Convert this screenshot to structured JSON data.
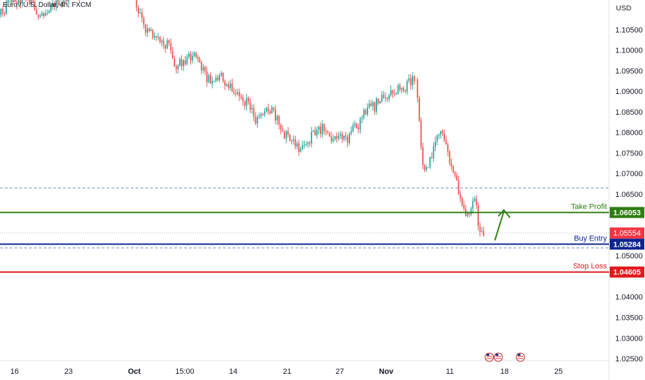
{
  "chart_data": {
    "type": "candlestick",
    "symbol_title": "Euro / U.S. Dollar, 4h, FXCM",
    "currency": "USD",
    "y_axis": {
      "range": [
        1.0245,
        1.1122
      ],
      "ticks": [
        "1.10500",
        "1.10000",
        "1.09500",
        "1.09000",
        "1.08500",
        "1.08000",
        "1.07500",
        "1.07000",
        "1.06500",
        "1.05000",
        "1.04000",
        "1.03500",
        "1.03000",
        "1.02500"
      ]
    },
    "x_axis": {
      "ticks": [
        "16",
        "23",
        "Oct",
        "15:00",
        "14",
        "21",
        "27",
        "Nov",
        "11",
        "18",
        "25"
      ]
    },
    "price_path": [
      [
        1.1085,
        1.11,
        1.1125,
        1.1118,
        1.1135,
        1.111,
        1.109,
        1.11,
        1.1115,
        1.112,
        1.113,
        1.114,
        1.114
      ],
      [
        1.113,
        1.109,
        1.106,
        1.105,
        1.103,
        1.1025,
        1.101,
        1.102,
        1.101,
        1.095,
        1.0965,
        1.0975,
        1.0985,
        1.099,
        1.0975,
        1.095,
        1.0935,
        1.092,
        1.093,
        1.094,
        1.092,
        1.091,
        1.09,
        1.0895,
        1.088,
        1.087,
        1.0855,
        1.082,
        1.0835,
        1.085,
        1.0855,
        1.0845,
        1.0815,
        1.08,
        1.079,
        1.0785,
        1.077,
        1.076,
        1.077,
        1.079,
        1.08,
        1.081,
        1.0805,
        1.079,
        1.078,
        1.078,
        1.079,
        1.0775,
        1.08,
        1.081,
        1.082,
        1.085,
        1.087,
        1.086,
        1.0875,
        1.089,
        1.088,
        1.0895,
        1.0905,
        1.09,
        1.091,
        1.092,
        1.0928
      ],
      [
        1.0928,
        1.086,
        1.076,
        1.07,
        1.072,
        1.074,
        1.075,
        1.077,
        1.0805,
        1.081,
        1.079,
        1.076,
        1.072,
        1.07,
        1.069,
        1.066,
        1.0635,
        1.0615,
        1.06,
        1.0605,
        1.062,
        1.064,
        1.058,
        1.0565,
        1.0555
      ]
    ],
    "levels": [
      {
        "label": "Take Profit",
        "value": 1.06053,
        "price_label": "1.06053",
        "color": "#2e7d12"
      },
      {
        "label": "Buy Entry",
        "value": 1.05284,
        "price_label": "1.05284",
        "color": "#0d2494"
      },
      {
        "label": "Stop Loss",
        "value": 1.04605,
        "price_label": "1.04605",
        "color": "#e3181c"
      }
    ],
    "current_price": {
      "value": 1.05554,
      "price_label": "1.05554",
      "color": "#f23645"
    },
    "dashed_levels": [
      1.0665,
      1.0519
    ],
    "up_color": "#26a69a",
    "down_color": "#ef5350"
  }
}
